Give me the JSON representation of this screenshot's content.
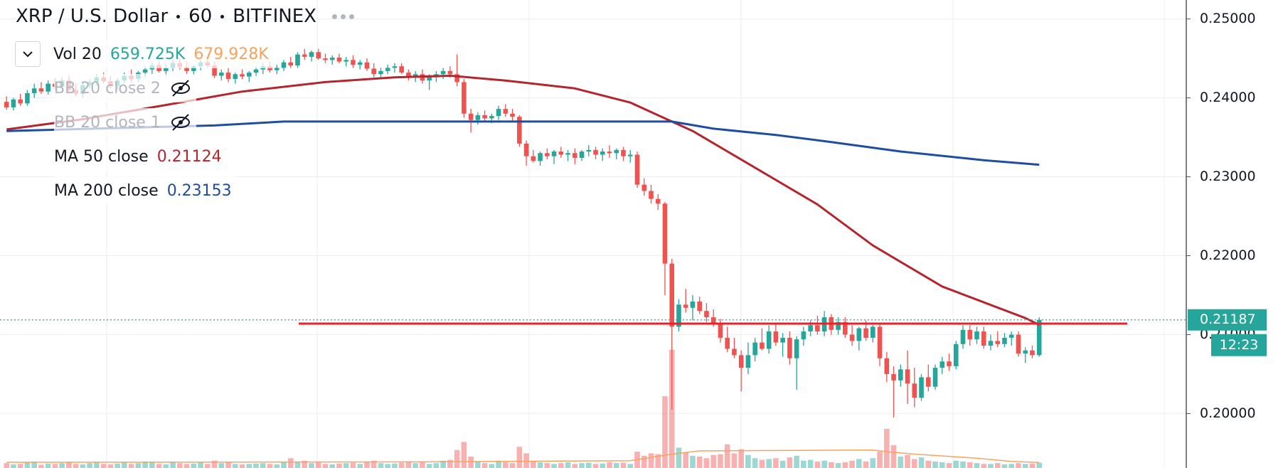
{
  "chart_data": {
    "type": "candlestick",
    "title": {
      "symbol": "XRP / U.S. Dollar",
      "interval": "60",
      "exchange": "BITFINEX"
    },
    "up_color": "#26a69a",
    "down_color": "#ef5350",
    "ohlc": [
      [
        0.2395,
        0.2402,
        0.2385,
        0.2388
      ],
      [
        0.2388,
        0.24,
        0.2384,
        0.2398
      ],
      [
        0.2398,
        0.2405,
        0.239,
        0.2393
      ],
      [
        0.2393,
        0.241,
        0.239,
        0.2406
      ],
      [
        0.2406,
        0.2418,
        0.24,
        0.2412
      ],
      [
        0.2412,
        0.242,
        0.2405,
        0.2408
      ],
      [
        0.2408,
        0.2422,
        0.2404,
        0.2418
      ],
      [
        0.2418,
        0.2425,
        0.241,
        0.2414
      ],
      [
        0.2414,
        0.2426,
        0.241,
        0.2422
      ],
      [
        0.2422,
        0.2428,
        0.2408,
        0.241
      ],
      [
        0.241,
        0.2418,
        0.2402,
        0.2405
      ],
      [
        0.2405,
        0.242,
        0.24,
        0.2416
      ],
      [
        0.2416,
        0.2424,
        0.2412,
        0.242
      ],
      [
        0.242,
        0.243,
        0.2415,
        0.2426
      ],
      [
        0.2426,
        0.2432,
        0.2418,
        0.2421
      ],
      [
        0.2421,
        0.2428,
        0.2412,
        0.2415
      ],
      [
        0.2415,
        0.2425,
        0.241,
        0.2422
      ],
      [
        0.2422,
        0.2432,
        0.2418,
        0.2428
      ],
      [
        0.2428,
        0.2436,
        0.242,
        0.2424
      ],
      [
        0.2424,
        0.2434,
        0.242,
        0.2432
      ],
      [
        0.2432,
        0.244,
        0.2426,
        0.2436
      ],
      [
        0.2436,
        0.2445,
        0.243,
        0.2441
      ],
      [
        0.2441,
        0.2446,
        0.2432,
        0.2434
      ],
      [
        0.2434,
        0.2442,
        0.2428,
        0.2438
      ],
      [
        0.2438,
        0.2448,
        0.2434,
        0.2444
      ],
      [
        0.2444,
        0.245,
        0.2436,
        0.2439
      ],
      [
        0.2439,
        0.2446,
        0.243,
        0.2434
      ],
      [
        0.2434,
        0.2442,
        0.2428,
        0.244
      ],
      [
        0.244,
        0.2448,
        0.2435,
        0.2445
      ],
      [
        0.2445,
        0.2452,
        0.2438,
        0.2441
      ],
      [
        0.2441,
        0.2446,
        0.2425,
        0.2428
      ],
      [
        0.2428,
        0.2436,
        0.2422,
        0.2432
      ],
      [
        0.2432,
        0.2438,
        0.242,
        0.2424
      ],
      [
        0.2424,
        0.2432,
        0.2418,
        0.243
      ],
      [
        0.243,
        0.2436,
        0.2424,
        0.2427
      ],
      [
        0.2427,
        0.2434,
        0.242,
        0.2432
      ],
      [
        0.2432,
        0.244,
        0.2428,
        0.2436
      ],
      [
        0.2436,
        0.2444,
        0.243,
        0.244
      ],
      [
        0.244,
        0.2446,
        0.2432,
        0.2435
      ],
      [
        0.2435,
        0.2442,
        0.243,
        0.2438
      ],
      [
        0.2438,
        0.2448,
        0.2434,
        0.2445
      ],
      [
        0.2445,
        0.2452,
        0.2438,
        0.2441
      ],
      [
        0.2441,
        0.2458,
        0.2438,
        0.2455
      ],
      [
        0.2455,
        0.2462,
        0.2448,
        0.2452
      ],
      [
        0.2452,
        0.246,
        0.2446,
        0.2458
      ],
      [
        0.2458,
        0.2462,
        0.2448,
        0.245
      ],
      [
        0.245,
        0.2456,
        0.2444,
        0.2448
      ],
      [
        0.2448,
        0.2454,
        0.2442,
        0.2451
      ],
      [
        0.2451,
        0.2456,
        0.2444,
        0.2446
      ],
      [
        0.2446,
        0.2452,
        0.244,
        0.2448
      ],
      [
        0.2448,
        0.2454,
        0.2438,
        0.2442
      ],
      [
        0.2442,
        0.2448,
        0.2436,
        0.2445
      ],
      [
        0.2445,
        0.245,
        0.2434,
        0.2437
      ],
      [
        0.2437,
        0.2444,
        0.2426,
        0.243
      ],
      [
        0.243,
        0.2438,
        0.2424,
        0.2434
      ],
      [
        0.2434,
        0.2442,
        0.243,
        0.2438
      ],
      [
        0.2438,
        0.2444,
        0.2432,
        0.244
      ],
      [
        0.244,
        0.2444,
        0.243,
        0.2432
      ],
      [
        0.2432,
        0.2436,
        0.2422,
        0.2426
      ],
      [
        0.2426,
        0.2434,
        0.242,
        0.243
      ],
      [
        0.243,
        0.2436,
        0.2418,
        0.2422
      ],
      [
        0.2422,
        0.243,
        0.241,
        0.2426
      ],
      [
        0.2426,
        0.2434,
        0.242,
        0.243
      ],
      [
        0.243,
        0.2438,
        0.2424,
        0.2434
      ],
      [
        0.2434,
        0.244,
        0.2426,
        0.243
      ],
      [
        0.243,
        0.2455,
        0.2415,
        0.242
      ],
      [
        0.242,
        0.2424,
        0.2375,
        0.238
      ],
      [
        0.238,
        0.2386,
        0.2356,
        0.2372
      ],
      [
        0.2372,
        0.2382,
        0.2366,
        0.2378
      ],
      [
        0.2378,
        0.2384,
        0.237,
        0.2374
      ],
      [
        0.2374,
        0.238,
        0.2368,
        0.2377
      ],
      [
        0.2377,
        0.239,
        0.2372,
        0.2386
      ],
      [
        0.2386,
        0.2392,
        0.2376,
        0.238
      ],
      [
        0.238,
        0.2386,
        0.237,
        0.2376
      ],
      [
        0.2376,
        0.2378,
        0.2338,
        0.2342
      ],
      [
        0.2342,
        0.2346,
        0.2314,
        0.2326
      ],
      [
        0.2326,
        0.2334,
        0.2318,
        0.232
      ],
      [
        0.232,
        0.2332,
        0.2314,
        0.233
      ],
      [
        0.233,
        0.2336,
        0.2322,
        0.2326
      ],
      [
        0.2326,
        0.2334,
        0.2316,
        0.2332
      ],
      [
        0.2332,
        0.2338,
        0.2324,
        0.2328
      ],
      [
        0.2328,
        0.2334,
        0.232,
        0.233
      ],
      [
        0.233,
        0.2336,
        0.2316,
        0.2324
      ],
      [
        0.2324,
        0.2334,
        0.232,
        0.2332
      ],
      [
        0.2332,
        0.234,
        0.2326,
        0.2334
      ],
      [
        0.2334,
        0.2338,
        0.2322,
        0.2328
      ],
      [
        0.2328,
        0.2336,
        0.232,
        0.2332
      ],
      [
        0.2332,
        0.234,
        0.2324,
        0.233
      ],
      [
        0.233,
        0.2336,
        0.2322,
        0.2334
      ],
      [
        0.2334,
        0.2338,
        0.232,
        0.2326
      ],
      [
        0.2326,
        0.2334,
        0.2318,
        0.2328
      ],
      [
        0.2328,
        0.2332,
        0.2286,
        0.229
      ],
      [
        0.229,
        0.2298,
        0.2276,
        0.2282
      ],
      [
        0.2282,
        0.229,
        0.2266,
        0.2272
      ],
      [
        0.2272,
        0.2278,
        0.2258,
        0.2266
      ],
      [
        0.2266,
        0.2268,
        0.215,
        0.219
      ],
      [
        0.219,
        0.2196,
        0.2005,
        0.211
      ],
      [
        0.211,
        0.2145,
        0.2104,
        0.2138
      ],
      [
        0.2138,
        0.2158,
        0.2128,
        0.2134
      ],
      [
        0.2134,
        0.215,
        0.2118,
        0.2142
      ],
      [
        0.2142,
        0.2148,
        0.2126,
        0.213
      ],
      [
        0.213,
        0.214,
        0.2116,
        0.2122
      ],
      [
        0.2122,
        0.2132,
        0.211,
        0.2115
      ],
      [
        0.2115,
        0.212,
        0.209,
        0.2096
      ],
      [
        0.2096,
        0.211,
        0.2078,
        0.2082
      ],
      [
        0.2082,
        0.2096,
        0.207,
        0.2074
      ],
      [
        0.2074,
        0.208,
        0.2028,
        0.2058
      ],
      [
        0.2058,
        0.209,
        0.205,
        0.2074
      ],
      [
        0.2074,
        0.2096,
        0.2066,
        0.209
      ],
      [
        0.209,
        0.2108,
        0.208,
        0.2082
      ],
      [
        0.2082,
        0.2112,
        0.2076,
        0.2104
      ],
      [
        0.2104,
        0.2114,
        0.2086,
        0.209
      ],
      [
        0.209,
        0.2102,
        0.2072,
        0.2096
      ],
      [
        0.2096,
        0.2104,
        0.2062,
        0.207
      ],
      [
        0.207,
        0.2098,
        0.203,
        0.2094
      ],
      [
        0.2094,
        0.211,
        0.2086,
        0.2104
      ],
      [
        0.2104,
        0.2118,
        0.2098,
        0.2112
      ],
      [
        0.2112,
        0.2124,
        0.21,
        0.2104
      ],
      [
        0.2104,
        0.213,
        0.2098,
        0.2122
      ],
      [
        0.2122,
        0.2126,
        0.21,
        0.2106
      ],
      [
        0.2106,
        0.2122,
        0.21,
        0.2116
      ],
      [
        0.2116,
        0.2122,
        0.2096,
        0.21
      ],
      [
        0.21,
        0.2112,
        0.2086,
        0.2092
      ],
      [
        0.2092,
        0.211,
        0.208,
        0.2108
      ],
      [
        0.2108,
        0.2118,
        0.2092,
        0.2096
      ],
      [
        0.2096,
        0.2112,
        0.209,
        0.211
      ],
      [
        0.211,
        0.2114,
        0.206,
        0.207
      ],
      [
        0.207,
        0.2078,
        0.204,
        0.205
      ],
      [
        0.205,
        0.206,
        0.1995,
        0.2042
      ],
      [
        0.2042,
        0.2062,
        0.2034,
        0.2056
      ],
      [
        0.2056,
        0.208,
        0.2012,
        0.2038
      ],
      [
        0.2038,
        0.2058,
        0.2008,
        0.202
      ],
      [
        0.202,
        0.205,
        0.2016,
        0.2046
      ],
      [
        0.2046,
        0.2062,
        0.2028,
        0.2034
      ],
      [
        0.2034,
        0.2062,
        0.203,
        0.2058
      ],
      [
        0.2058,
        0.2072,
        0.205,
        0.2066
      ],
      [
        0.2066,
        0.2076,
        0.2054,
        0.206
      ],
      [
        0.206,
        0.2092,
        0.2056,
        0.2088
      ],
      [
        0.2088,
        0.2112,
        0.2082,
        0.2106
      ],
      [
        0.2106,
        0.2112,
        0.2086,
        0.2094
      ],
      [
        0.2094,
        0.211,
        0.2088,
        0.2104
      ],
      [
        0.2104,
        0.211,
        0.2082,
        0.2086
      ],
      [
        0.2086,
        0.21,
        0.208,
        0.2092
      ],
      [
        0.2092,
        0.2104,
        0.2084,
        0.2088
      ],
      [
        0.2088,
        0.2102,
        0.2084,
        0.2096
      ],
      [
        0.2096,
        0.2104,
        0.2086,
        0.21
      ],
      [
        0.21,
        0.2104,
        0.2072,
        0.2076
      ],
      [
        0.2076,
        0.2084,
        0.2064,
        0.208
      ],
      [
        0.208,
        0.2086,
        0.207,
        0.2074
      ],
      [
        0.2074,
        0.2122,
        0.2072,
        0.21187
      ]
    ],
    "volume": {
      "name": "Vol 20",
      "ylim": [
        0,
        15000000
      ],
      "last_label": "659.725K",
      "values": [
        600000,
        450000,
        500000,
        700000,
        800000,
        400000,
        550000,
        500000,
        600000,
        750000,
        500000,
        450000,
        600000,
        700000,
        500000,
        450000,
        550000,
        650000,
        500000,
        600000,
        800000,
        700000,
        500000,
        450000,
        700000,
        600000,
        500000,
        550000,
        650000,
        500000,
        900000,
        600000,
        700000,
        500000,
        450000,
        500000,
        550000,
        600000,
        500000,
        450000,
        700000,
        1200000,
        800000,
        900000,
        600000,
        700000,
        500000,
        450000,
        550000,
        600000,
        650000,
        500000,
        700000,
        900000,
        600000,
        500000,
        550000,
        650000,
        800000,
        600000,
        700000,
        500000,
        600000,
        900000,
        1000000,
        2200000,
        3200000,
        1400000,
        800000,
        600000,
        500000,
        900000,
        700000,
        600000,
        2600000,
        1800000,
        800000,
        700000,
        600000,
        500000,
        600000,
        700000,
        500000,
        600000,
        650000,
        500000,
        550000,
        700000,
        600000,
        650000,
        500000,
        2000000,
        1500000,
        1800000,
        1700000,
        8800000,
        14500000,
        2500000,
        1900000,
        1500000,
        1400000,
        1200000,
        1600000,
        1700000,
        2900000,
        1800000,
        2300000,
        1600000,
        1200000,
        1000000,
        1100000,
        1200000,
        900000,
        1300000,
        1500000,
        900000,
        1000000,
        800000,
        900000,
        700000,
        600000,
        700000,
        900000,
        1100000,
        800000,
        1200000,
        2000000,
        4800000,
        2800000,
        1400000,
        1600000,
        1100000,
        1300000,
        900000,
        800000,
        700000,
        600000,
        900000,
        800000,
        700000,
        600000,
        500000,
        500000,
        600000,
        450000,
        500000,
        600000,
        500000,
        550000,
        659725
      ],
      "ma": {
        "color": "#f7a35c",
        "last_label": "679.928K",
        "x": [
          0,
          60,
          90,
          96,
          100,
          125,
          127,
          131,
          140,
          145,
          149
        ],
        "values": [
          700000,
          750000,
          900000,
          1700000,
          2100000,
          2200000,
          2000000,
          1700000,
          1200000,
          800000,
          679928
        ]
      }
    },
    "indicators": [
      {
        "name": "BB 20 close 2",
        "hidden": true
      },
      {
        "name": "BB 20 close 1",
        "hidden": true
      }
    ],
    "series": [
      {
        "name": "MA 50 close",
        "color": "#b5252e",
        "x": [
          0,
          11,
          23,
          34,
          46,
          56,
          64,
          72,
          82,
          90,
          99,
          105,
          117,
          125,
          135,
          147,
          149
        ],
        "values": [
          0.236,
          0.2373,
          0.2391,
          0.2408,
          0.242,
          0.2426,
          0.2428,
          0.2422,
          0.2412,
          0.2394,
          0.2358,
          0.2327,
          0.2265,
          0.2213,
          0.2161,
          0.2121,
          0.21124
        ]
      },
      {
        "name": "MA 200 close",
        "color": "#1f4da0",
        "x": [
          0,
          30,
          40,
          96,
          102,
          111,
          119,
          129,
          141,
          149
        ],
        "values": [
          0.2358,
          0.2365,
          0.237,
          0.237,
          0.2361,
          0.2353,
          0.2344,
          0.2332,
          0.2321,
          0.23153
        ]
      }
    ],
    "hline": {
      "value": 0.2114,
      "color": "#ee2027"
    },
    "countdown": "12:23",
    "ylim": [
      0.1931,
      0.2524
    ],
    "yticks": [
      {
        "value": 0.2,
        "label": "0.20000"
      },
      {
        "value": 0.21,
        "label": "0.21000"
      },
      {
        "value": 0.22,
        "label": "0.22000"
      },
      {
        "value": 0.23,
        "label": "0.23000"
      },
      {
        "value": 0.24,
        "label": "0.24000"
      },
      {
        "value": 0.25,
        "label": "0.25000"
      }
    ],
    "grid": true
  }
}
